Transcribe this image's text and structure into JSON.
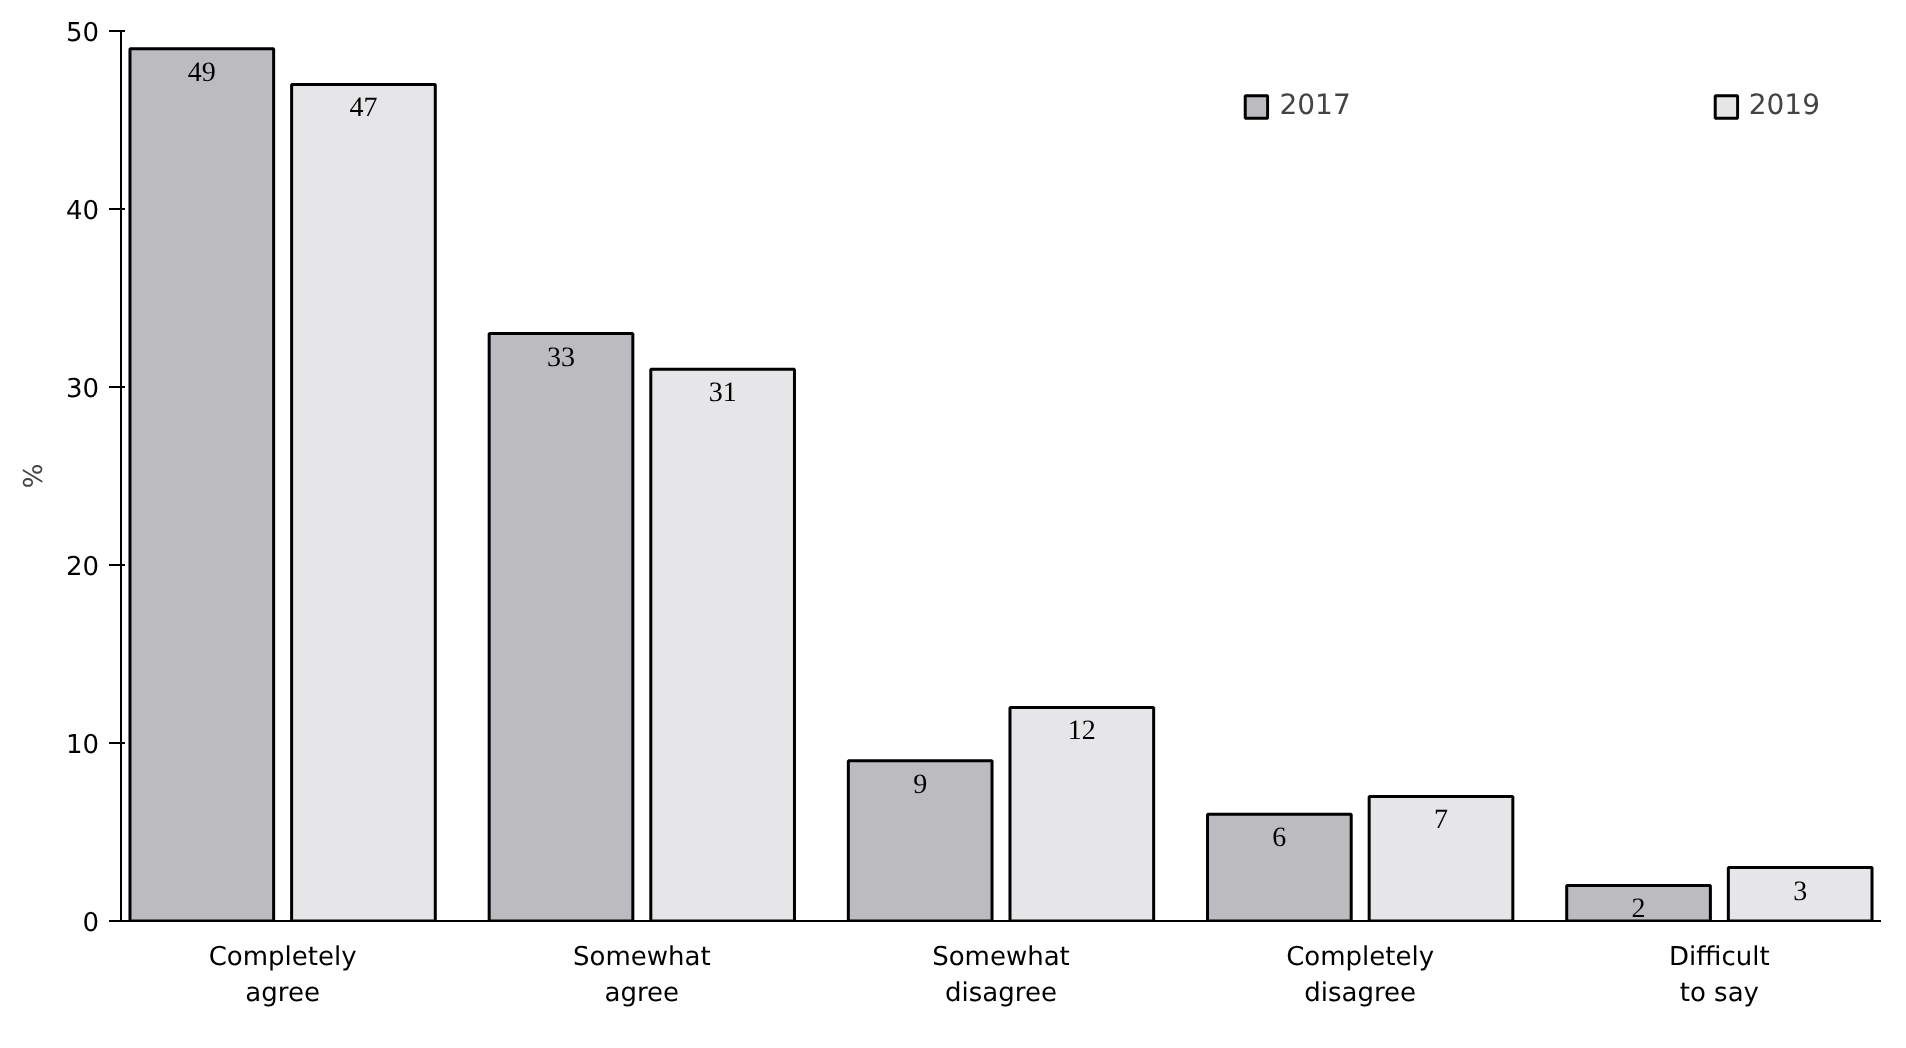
{
  "chart_data": {
    "type": "bar",
    "ylabel": "%",
    "categories": [
      "Completely\nagree",
      "Somewhat\nagree",
      "Somewhat\ndisagree",
      "Completely\ndisagree",
      "Difficult\nto say"
    ],
    "series": [
      {
        "name": "2017",
        "color": "#bcbcc0",
        "values": [
          49,
          33,
          9,
          6,
          2
        ]
      },
      {
        "name": "2019",
        "color": "#e6e6e8",
        "values": [
          47,
          31,
          12,
          7,
          3
        ]
      }
    ],
    "ylim": [
      0,
      50
    ],
    "yticks": [
      0,
      10,
      20,
      30,
      40,
      50
    ],
    "grid": false,
    "legend": "top right",
    "data_labels": true
  }
}
